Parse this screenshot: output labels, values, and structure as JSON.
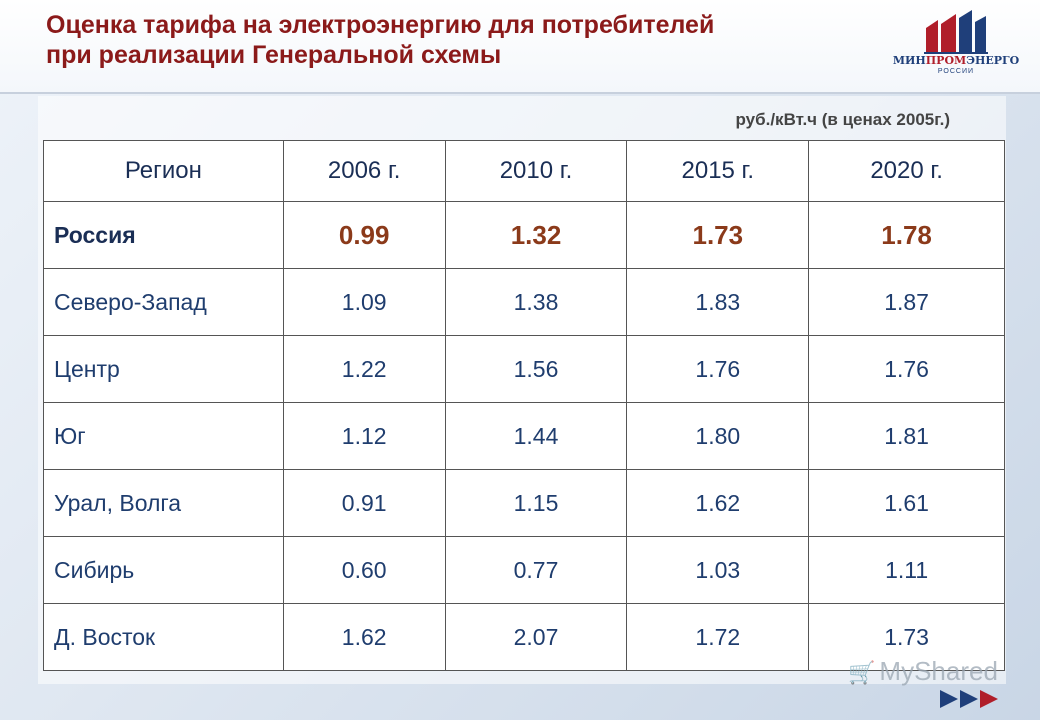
{
  "header": {
    "title_line1": "Оценка тарифа на электроэнергию для потребителей",
    "title_line2": "при реализации Генеральной схемы",
    "logo": {
      "name_part1": "МИН",
      "name_part2": "ПРОМ",
      "name_part3": "ЭНЕРГО",
      "subtitle": "РОССИИ"
    }
  },
  "unit_label": "руб./кВт.ч (в ценах 2005г.)",
  "table": {
    "columns": [
      "Регион",
      "2006 г.",
      "2010 г.",
      "2015 г.",
      "2020 г."
    ],
    "rows": [
      {
        "region": "Россия",
        "values": [
          "0.99",
          "1.32",
          "1.73",
          "1.78"
        ]
      },
      {
        "region": "Северо-Запад",
        "values": [
          "1.09",
          "1.38",
          "1.83",
          "1.87"
        ]
      },
      {
        "region": "Центр",
        "values": [
          "1.22",
          "1.56",
          "1.76",
          "1.76"
        ]
      },
      {
        "region": "Юг",
        "values": [
          "1.12",
          "1.44",
          "1.80",
          "1.81"
        ]
      },
      {
        "region": "Урал, Волга",
        "values": [
          "0.91",
          "1.15",
          "1.62",
          "1.61"
        ]
      },
      {
        "region": "Сибирь",
        "values": [
          "0.60",
          "0.77",
          "1.03",
          "1.11"
        ]
      },
      {
        "region": "Д. Восток",
        "values": [
          "1.62",
          "2.07",
          "1.72",
          "1.73"
        ]
      }
    ]
  },
  "watermark": "MyShared",
  "colors": {
    "title": "#8b1a1a",
    "table_text": "#1f3d6e",
    "highlight_values": "#8b3a1a"
  }
}
